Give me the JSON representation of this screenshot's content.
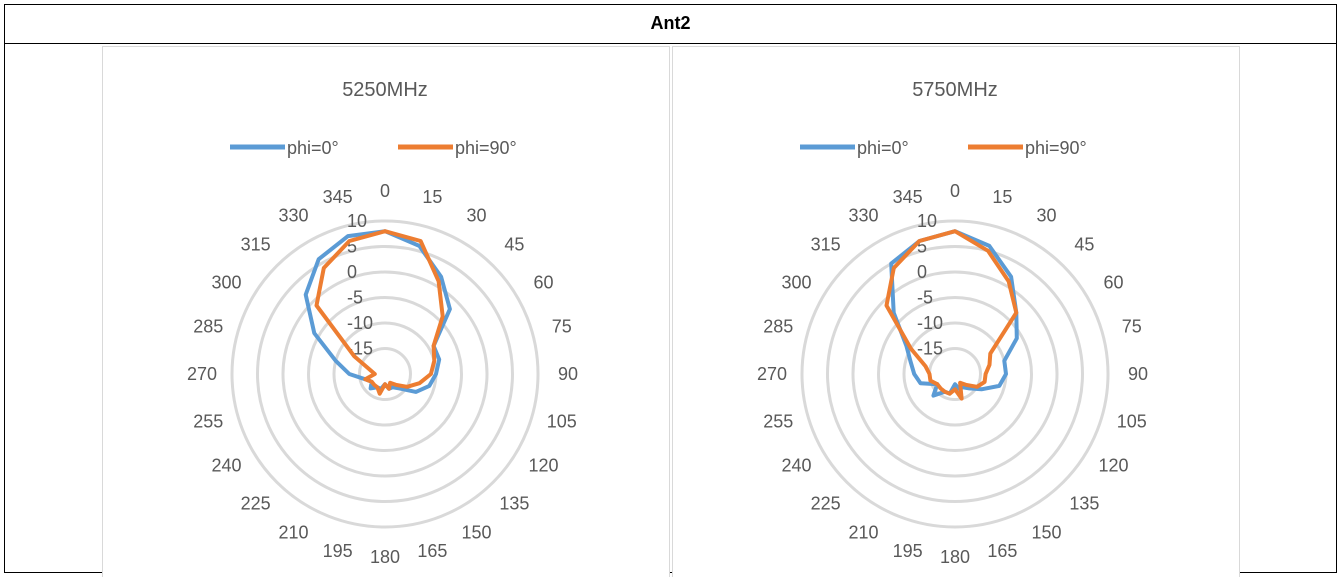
{
  "table": {
    "header": "Ant2"
  },
  "chart_data": [
    {
      "type": "radar",
      "title": "5250MHz",
      "angles": [
        0,
        15,
        30,
        45,
        60,
        75,
        90,
        105,
        120,
        135,
        150,
        165,
        180,
        195,
        210,
        225,
        240,
        255,
        270,
        285,
        300,
        315,
        330,
        345
      ],
      "rlim": [
        -20,
        10
      ],
      "r_ticks": [
        -15,
        -10,
        -5,
        0,
        5,
        10
      ],
      "legend_position": "top",
      "series": [
        {
          "name": "phi=0°",
          "color": "#5b9bd5",
          "values": [
            8,
            6,
            2,
            -2,
            -9,
            -9,
            -10,
            -11,
            -13,
            -16,
            -17,
            -17,
            -18,
            -17,
            -17,
            -16,
            -17,
            -16,
            -13,
            -10,
            -4,
            2,
            6,
            8
          ]
        },
        {
          "name": "phi=90°",
          "color": "#ed7d31",
          "values": [
            8,
            7,
            1,
            -4,
            -9,
            -10,
            -11,
            -13,
            -15,
            -17,
            -18,
            -17,
            -18,
            -16,
            -17,
            -17,
            -17,
            -16,
            -18,
            -17,
            -13,
            -1,
            4,
            7
          ]
        }
      ]
    },
    {
      "type": "radar",
      "title": "5750MHz",
      "angles": [
        0,
        15,
        30,
        45,
        60,
        75,
        90,
        105,
        120,
        135,
        150,
        165,
        180,
        195,
        210,
        225,
        240,
        255,
        270,
        285,
        300,
        315,
        330,
        345
      ],
      "rlim": [
        -20,
        10
      ],
      "r_ticks": [
        -15,
        -10,
        -5,
        0,
        5,
        10
      ],
      "legend_position": "top",
      "series": [
        {
          "name": "phi=0°",
          "color": "#5b9bd5",
          "values": [
            8,
            6,
            2,
            -3,
            -6,
            -10,
            -10,
            -11,
            -14,
            -16,
            -17,
            -17,
            -18,
            -16,
            -16,
            -14,
            -16,
            -13,
            -12,
            -11,
            -9,
            -3,
            5,
            7
          ]
        },
        {
          "name": "phi=90°",
          "color": "#ed7d31",
          "values": [
            8,
            5,
            1,
            -3,
            -12,
            -13,
            -14,
            -14,
            -15,
            -17,
            -18,
            -15,
            -17,
            -16,
            -16,
            -16,
            -16,
            -15,
            -15,
            -14,
            -10,
            -1,
            4,
            7
          ]
        }
      ]
    }
  ]
}
